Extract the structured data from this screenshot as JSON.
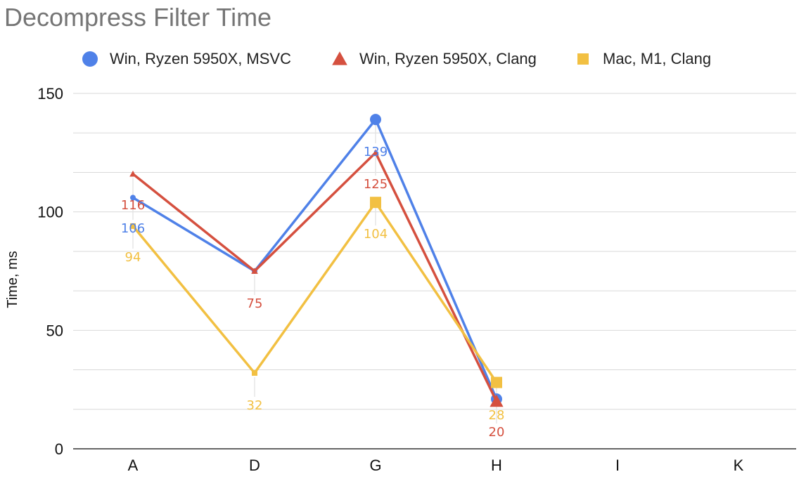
{
  "chart_data": {
    "type": "line",
    "title": "Decompress Filter Time",
    "xlabel": "",
    "ylabel": "Time, ms",
    "categories": [
      "A",
      "D",
      "G",
      "H",
      "I",
      "K"
    ],
    "yticks": [
      0,
      50,
      100,
      150
    ],
    "ylim": [
      0,
      150
    ],
    "grid": true,
    "legend_position": "top",
    "series": [
      {
        "name": "Win, Ryzen 5950X, MSVC",
        "marker": "circle",
        "color": "#4f81e8",
        "values": [
          106,
          75,
          139,
          21,
          null,
          null
        ],
        "labels": [
          "106",
          "",
          "139",
          "",
          "",
          ""
        ]
      },
      {
        "name": "Win, Ryzen 5950X, Clang",
        "marker": "triangle",
        "color": "#d5503f",
        "values": [
          116,
          75,
          125,
          20,
          null,
          null
        ],
        "labels": [
          "116",
          "75",
          "125",
          "20",
          "",
          ""
        ]
      },
      {
        "name": "Mac, M1, Clang",
        "marker": "square",
        "color": "#f2c042",
        "values": [
          94,
          32,
          104,
          28,
          null,
          null
        ],
        "labels": [
          "94",
          "32",
          "104",
          "28",
          "",
          ""
        ]
      }
    ]
  }
}
